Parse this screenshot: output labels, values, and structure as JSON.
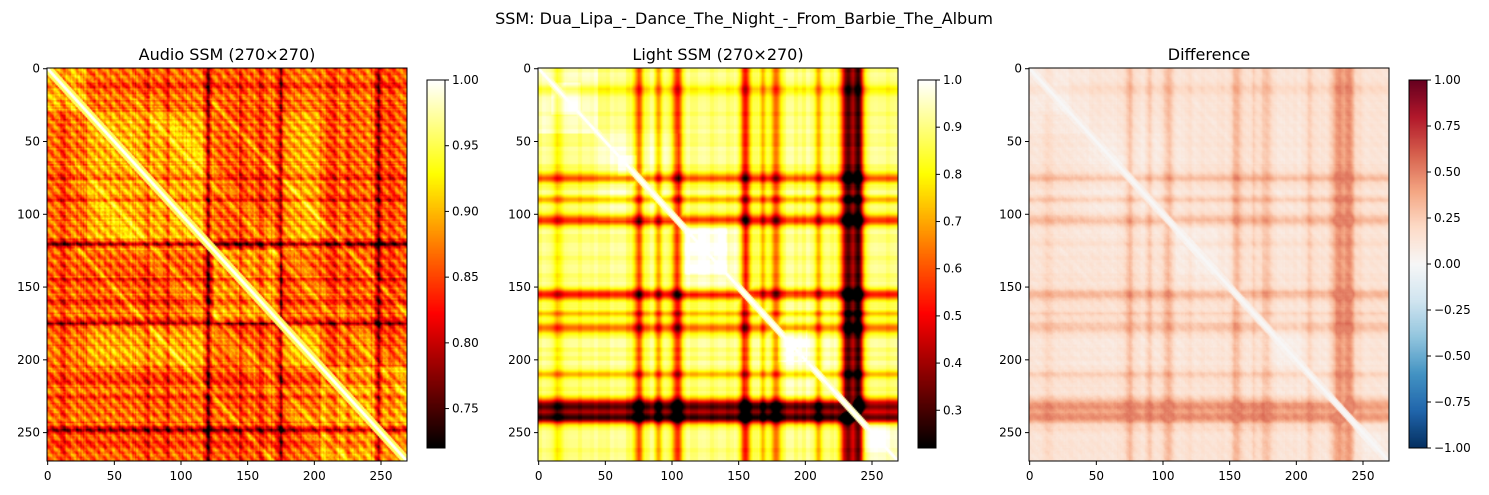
{
  "figure_title": "SSM: Dua_Lipa_-_Dance_The_Night_-_From_Barbie_The_Album",
  "chart_data": [
    {
      "type": "heatmap",
      "title": "Audio SSM (270×270)",
      "size": 270,
      "colormap": "hot",
      "value_range": [
        0.72,
        1.0
      ],
      "colorbar_ticks": [
        0.75,
        0.8,
        0.85,
        0.9,
        0.95,
        1.0
      ],
      "colorbar_tick_labels": [
        "0.75",
        "0.80",
        "0.85",
        "0.90",
        "0.95",
        "1.00"
      ],
      "x_ticks": [
        0,
        50,
        100,
        150,
        200,
        250
      ],
      "y_ticks": [
        0,
        50,
        100,
        150,
        200,
        250
      ],
      "diagonal_value": 1.0,
      "dark_lines": [
        120,
        175,
        248
      ],
      "block_boundaries": [
        30,
        125,
        175,
        205
      ]
    },
    {
      "type": "heatmap",
      "title": "Light SSM (270×270)",
      "size": 270,
      "colormap": "hot",
      "value_range": [
        0.22,
        1.0
      ],
      "colorbar_ticks": [
        0.3,
        0.4,
        0.5,
        0.6,
        0.7,
        0.8,
        0.9,
        1.0
      ],
      "colorbar_tick_labels": [
        "0.3",
        "0.4",
        "0.5",
        "0.6",
        "0.7",
        "0.8",
        "0.9",
        "1.0"
      ],
      "x_ticks": [
        0,
        50,
        100,
        150,
        200,
        250
      ],
      "y_ticks": [
        0,
        50,
        100,
        150,
        200,
        250
      ],
      "diagonal_value": 1.0,
      "dark_lines": [
        75,
        105,
        155,
        175,
        232,
        238
      ],
      "block_boundaries": [
        45,
        105,
        155,
        230
      ]
    },
    {
      "type": "heatmap",
      "title": "Difference",
      "size": 270,
      "colormap": "RdBu_r",
      "value_range": [
        -1.0,
        1.0
      ],
      "colorbar_ticks": [
        -1.0,
        -0.75,
        -0.5,
        -0.25,
        0.0,
        0.25,
        0.5,
        0.75,
        1.0
      ],
      "colorbar_tick_labels": [
        "−1.00",
        "−0.75",
        "−0.50",
        "−0.25",
        "0.00",
        "0.25",
        "0.50",
        "0.75",
        "1.00"
      ],
      "x_ticks": [
        0,
        50,
        100,
        150,
        200,
        250
      ],
      "y_ticks": [
        0,
        50,
        100,
        150,
        200,
        250
      ],
      "diagonal_value": 0.0
    }
  ]
}
